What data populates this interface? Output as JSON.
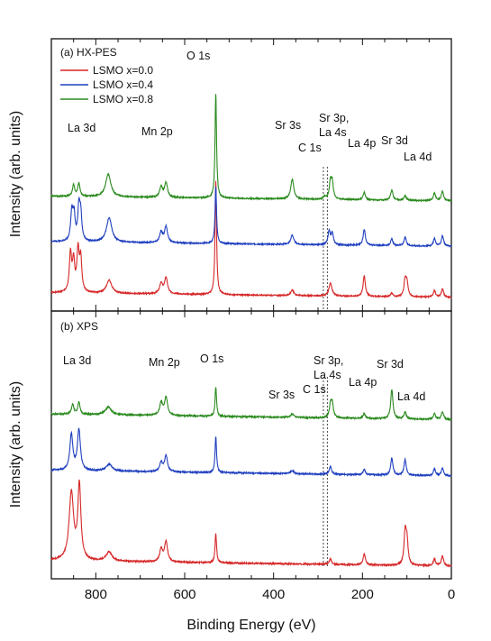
{
  "chart_data": {
    "type": "line",
    "xlabel": "Binding Energy (eV)",
    "ylabel": "Intensity (arb. units)",
    "xlim": [
      900,
      0
    ],
    "x_reversed": true,
    "xticks": [
      800,
      600,
      400,
      200,
      0
    ],
    "yticks_labeled": false,
    "dashed_reference_lines_x": [
      288,
      279
    ],
    "legend": {
      "placement": "top-left",
      "entries": [
        {
          "name": "LSMO x=0.0",
          "color": "#d62728"
        },
        {
          "name": "LSMO x=0.4",
          "color": "#1f3fbf"
        },
        {
          "name": "LSMO x=0.8",
          "color": "#2a8a1e"
        }
      ]
    },
    "panels": [
      {
        "label": "(a) HX-PES",
        "annotations": [
          {
            "text": "La 3d",
            "x": 850
          },
          {
            "text": "Mn 2p",
            "x": 645
          },
          {
            "text": "O 1s",
            "x": 530
          },
          {
            "text": "Sr 3s",
            "x": 358
          },
          {
            "text": "C 1s",
            "x": 285
          },
          {
            "text": "Sr 3p,",
            "x": 270
          },
          {
            "text": "La 4s",
            "x": 270
          },
          {
            "text": "La 4p",
            "x": 195
          },
          {
            "text": "Sr 3d",
            "x": 134
          },
          {
            "text": "La 4d",
            "x": 103
          }
        ],
        "series": [
          {
            "name": "LSMO x=0.0",
            "color": "#d62728",
            "baseline": 0.0,
            "peaks": [
              {
                "x": 857,
                "height": 2.0,
                "width": 3
              },
              {
                "x": 850,
                "height": 1.6,
                "width": 3
              },
              {
                "x": 840,
                "height": 2.15,
                "width": 3
              },
              {
                "x": 834,
                "height": 1.7,
                "width": 3
              },
              {
                "x": 770,
                "height": 0.7,
                "width": 7
              },
              {
                "x": 653,
                "height": 0.55,
                "width": 4
              },
              {
                "x": 642,
                "height": 0.85,
                "width": 4
              },
              {
                "x": 530,
                "height": 6.0,
                "width": 2
              },
              {
                "x": 358,
                "height": 0.3,
                "width": 4
              },
              {
                "x": 272,
                "height": 0.7,
                "width": 4
              },
              {
                "x": 196,
                "height": 1.1,
                "width": 3
              },
              {
                "x": 134,
                "height": 0.2,
                "width": 3
              },
              {
                "x": 104,
                "height": 0.85,
                "width": 3
              },
              {
                "x": 100,
                "height": 0.7,
                "width": 3
              },
              {
                "x": 38,
                "height": 0.35,
                "width": 3
              },
              {
                "x": 20,
                "height": 0.45,
                "width": 3
              }
            ]
          },
          {
            "name": "LSMO x=0.4",
            "color": "#1f3fbf",
            "baseline": 2.7,
            "peaks": [
              {
                "x": 854,
                "height": 1.5,
                "width": 3
              },
              {
                "x": 849,
                "height": 1.3,
                "width": 3
              },
              {
                "x": 838,
                "height": 1.7,
                "width": 3
              },
              {
                "x": 834,
                "height": 1.3,
                "width": 3
              },
              {
                "x": 770,
                "height": 1.3,
                "width": 7
              },
              {
                "x": 653,
                "height": 0.55,
                "width": 4
              },
              {
                "x": 642,
                "height": 0.85,
                "width": 4
              },
              {
                "x": 530,
                "height": 3.0,
                "width": 2
              },
              {
                "x": 358,
                "height": 0.5,
                "width": 4
              },
              {
                "x": 275,
                "height": 0.7,
                "width": 3
              },
              {
                "x": 268,
                "height": 0.6,
                "width": 3
              },
              {
                "x": 196,
                "height": 0.85,
                "width": 3
              },
              {
                "x": 134,
                "height": 0.35,
                "width": 3
              },
              {
                "x": 104,
                "height": 0.45,
                "width": 3
              },
              {
                "x": 38,
                "height": 0.4,
                "width": 3
              },
              {
                "x": 20,
                "height": 0.55,
                "width": 3
              }
            ]
          },
          {
            "name": "LSMO x=0.8",
            "color": "#2a8a1e",
            "baseline": 5.1,
            "peaks": [
              {
                "x": 850,
                "height": 0.6,
                "width": 3
              },
              {
                "x": 838,
                "height": 0.7,
                "width": 3
              },
              {
                "x": 772,
                "height": 1.2,
                "width": 7
              },
              {
                "x": 653,
                "height": 0.55,
                "width": 4
              },
              {
                "x": 642,
                "height": 0.75,
                "width": 4
              },
              {
                "x": 530,
                "height": 5.5,
                "width": 2
              },
              {
                "x": 358,
                "height": 1.05,
                "width": 4
              },
              {
                "x": 285,
                "height": 0.15,
                "width": 3
              },
              {
                "x": 272,
                "height": 0.9,
                "width": 3
              },
              {
                "x": 268,
                "height": 0.8,
                "width": 3
              },
              {
                "x": 196,
                "height": 0.4,
                "width": 3
              },
              {
                "x": 134,
                "height": 0.55,
                "width": 3
              },
              {
                "x": 104,
                "height": 0.25,
                "width": 3
              },
              {
                "x": 38,
                "height": 0.4,
                "width": 3
              },
              {
                "x": 20,
                "height": 0.5,
                "width": 3
              }
            ]
          }
        ]
      },
      {
        "label": "(b) XPS",
        "annotations": [
          {
            "text": "La 3d",
            "x": 850
          },
          {
            "text": "Mn 2p",
            "x": 645
          },
          {
            "text": "O 1s",
            "x": 530
          },
          {
            "text": "Sr 3s",
            "x": 358
          },
          {
            "text": "C 1s",
            "x": 285
          },
          {
            "text": "Sr 3p,",
            "x": 270
          },
          {
            "text": "La 4s",
            "x": 270
          },
          {
            "text": "La 4p",
            "x": 195
          },
          {
            "text": "Sr 3d",
            "x": 134
          },
          {
            "text": "La 4d",
            "x": 103
          }
        ],
        "series": [
          {
            "name": "LSMO x=0.0",
            "color": "#d62728",
            "baseline": 0.0,
            "peaks": [
              {
                "x": 855,
                "height": 3.0,
                "width": 6
              },
              {
                "x": 837,
                "height": 3.3,
                "width": 4
              },
              {
                "x": 770,
                "height": 0.4,
                "width": 8
              },
              {
                "x": 653,
                "height": 0.55,
                "width": 4
              },
              {
                "x": 642,
                "height": 0.9,
                "width": 4
              },
              {
                "x": 530,
                "height": 1.3,
                "width": 2
              },
              {
                "x": 272,
                "height": 0.25,
                "width": 3
              },
              {
                "x": 196,
                "height": 0.5,
                "width": 3
              },
              {
                "x": 104,
                "height": 1.4,
                "width": 3
              },
              {
                "x": 100,
                "height": 1.0,
                "width": 3
              },
              {
                "x": 38,
                "height": 0.3,
                "width": 3
              },
              {
                "x": 20,
                "height": 0.45,
                "width": 3
              }
            ]
          },
          {
            "name": "LSMO x=0.4",
            "color": "#1f3fbf",
            "baseline": 4.0,
            "peaks": [
              {
                "x": 855,
                "height": 1.6,
                "width": 4
              },
              {
                "x": 838,
                "height": 1.8,
                "width": 4
              },
              {
                "x": 770,
                "height": 0.3,
                "width": 8
              },
              {
                "x": 653,
                "height": 0.4,
                "width": 4
              },
              {
                "x": 642,
                "height": 0.7,
                "width": 4
              },
              {
                "x": 530,
                "height": 1.6,
                "width": 2
              },
              {
                "x": 358,
                "height": 0.15,
                "width": 4
              },
              {
                "x": 272,
                "height": 0.35,
                "width": 3
              },
              {
                "x": 196,
                "height": 0.25,
                "width": 3
              },
              {
                "x": 134,
                "height": 0.75,
                "width": 3
              },
              {
                "x": 104,
                "height": 0.7,
                "width": 3
              },
              {
                "x": 38,
                "height": 0.3,
                "width": 3
              },
              {
                "x": 20,
                "height": 0.35,
                "width": 3
              }
            ]
          },
          {
            "name": "LSMO x=0.8",
            "color": "#2a8a1e",
            "baseline": 6.5,
            "peaks": [
              {
                "x": 852,
                "height": 0.45,
                "width": 3
              },
              {
                "x": 838,
                "height": 0.55,
                "width": 3
              },
              {
                "x": 772,
                "height": 0.35,
                "width": 8
              },
              {
                "x": 653,
                "height": 0.55,
                "width": 4
              },
              {
                "x": 642,
                "height": 0.8,
                "width": 4
              },
              {
                "x": 530,
                "height": 1.3,
                "width": 2
              },
              {
                "x": 358,
                "height": 0.15,
                "width": 4
              },
              {
                "x": 272,
                "height": 0.55,
                "width": 3
              },
              {
                "x": 268,
                "height": 0.6,
                "width": 3
              },
              {
                "x": 196,
                "height": 0.2,
                "width": 3
              },
              {
                "x": 134,
                "height": 1.3,
                "width": 3
              },
              {
                "x": 104,
                "height": 0.3,
                "width": 3
              },
              {
                "x": 38,
                "height": 0.25,
                "width": 3
              },
              {
                "x": 20,
                "height": 0.35,
                "width": 3
              }
            ]
          }
        ]
      }
    ]
  }
}
